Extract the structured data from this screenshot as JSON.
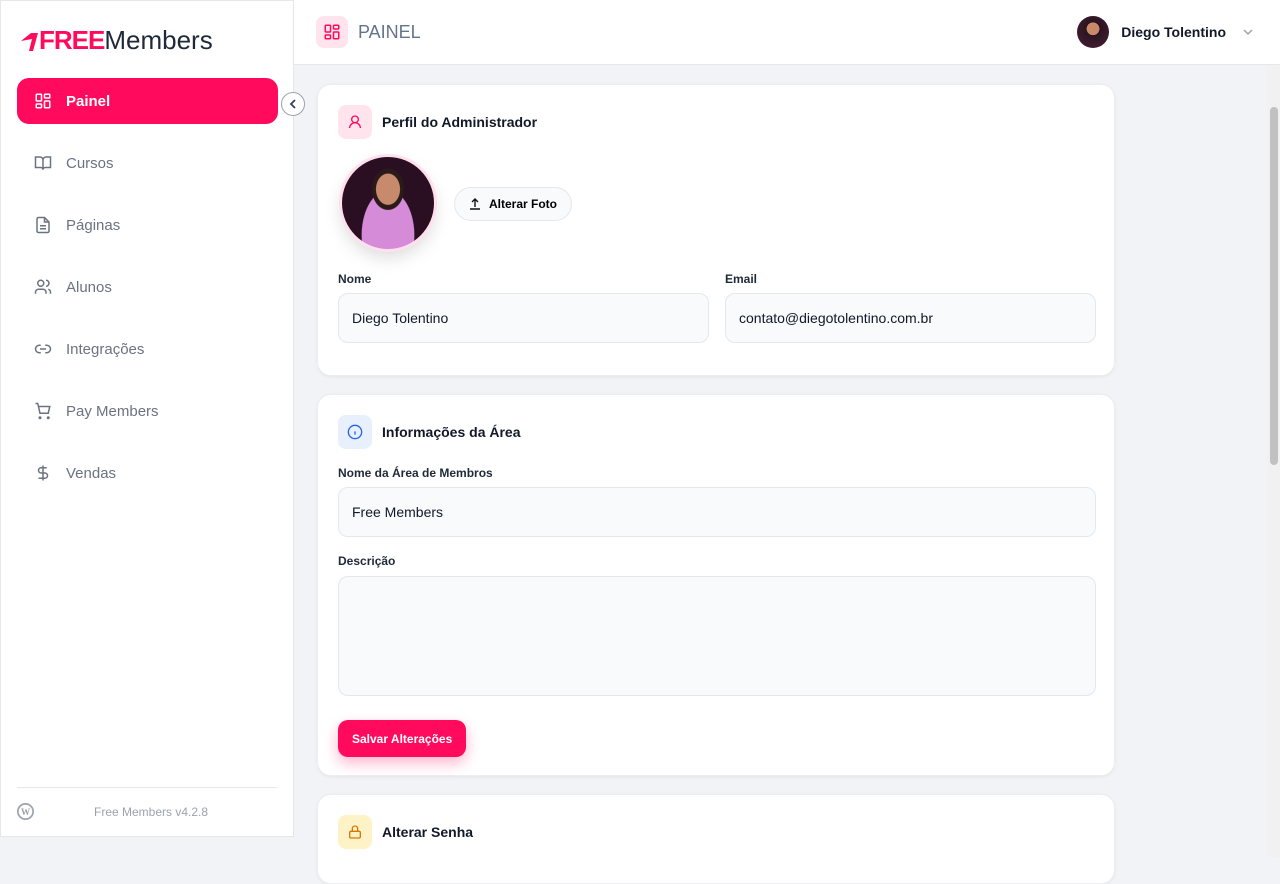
{
  "brand": {
    "free": "FREE",
    "members": "Members",
    "accent": "#ff0a5c"
  },
  "sidebar": {
    "items": [
      {
        "label": "Painel",
        "icon": "grid-icon",
        "active": true
      },
      {
        "label": "Cursos",
        "icon": "book-icon"
      },
      {
        "label": "Páginas",
        "icon": "file-icon"
      },
      {
        "label": "Alunos",
        "icon": "users-icon"
      },
      {
        "label": "Integrações",
        "icon": "link-icon"
      },
      {
        "label": "Pay Members",
        "icon": "cart-icon"
      },
      {
        "label": "Vendas",
        "icon": "dollar-icon"
      }
    ],
    "version": "Free Members v4.2.8"
  },
  "header": {
    "title": "PAINEL",
    "user_name": "Diego Tolentino"
  },
  "profile": {
    "title": "Perfil do Administrador",
    "change_photo": "Alterar Foto",
    "name_label": "Nome",
    "name_value": "Diego Tolentino",
    "email_label": "Email",
    "email_value": "contato@diegotolentino.com.br"
  },
  "area": {
    "title": "Informações da Área",
    "name_label": "Nome da Área de Membros",
    "name_value": "Free Members",
    "desc_label": "Descrição",
    "desc_value": "",
    "save": "Salvar Alterações"
  },
  "password": {
    "title": "Alterar Senha"
  }
}
